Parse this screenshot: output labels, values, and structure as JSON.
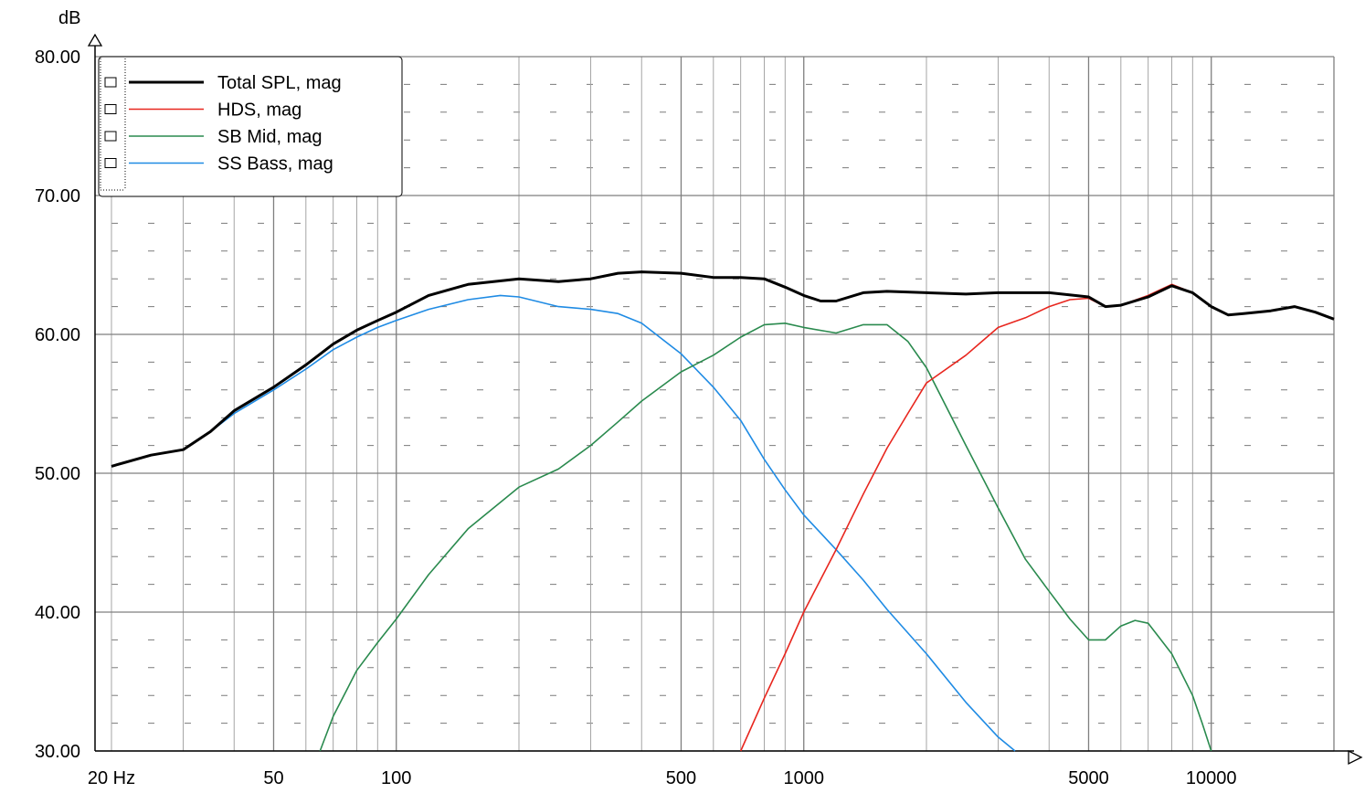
{
  "chart_data": {
    "type": "line",
    "ylabel": "dB",
    "xscale": "log",
    "xlim": [
      20,
      20000
    ],
    "ylim": [
      30,
      80
    ],
    "grid": true,
    "legend_position": "top-left",
    "y_ticks": [
      {
        "value": 80,
        "label": "80.00"
      },
      {
        "value": 70,
        "label": "70.00"
      },
      {
        "value": 60,
        "label": "60.00"
      },
      {
        "value": 50,
        "label": "50.00"
      },
      {
        "value": 40,
        "label": "40.00"
      },
      {
        "value": 30,
        "label": "30.00"
      }
    ],
    "x_ticks": [
      {
        "value": 20,
        "label": "20 Hz"
      },
      {
        "value": 50,
        "label": "50"
      },
      {
        "value": 100,
        "label": "100"
      },
      {
        "value": 500,
        "label": "500"
      },
      {
        "value": 1000,
        "label": "1000"
      },
      {
        "value": 5000,
        "label": "5000"
      },
      {
        "value": 10000,
        "label": "10000"
      }
    ],
    "series": [
      {
        "name": "Total SPL, mag",
        "color": "#000000",
        "x": [
          20,
          25,
          30,
          35,
          40,
          50,
          60,
          70,
          80,
          90,
          100,
          120,
          150,
          200,
          250,
          300,
          350,
          400,
          500,
          600,
          700,
          800,
          900,
          1000,
          1100,
          1200,
          1400,
          1600,
          2000,
          2500,
          3000,
          4000,
          5000,
          5500,
          6000,
          7000,
          8000,
          9000,
          10000,
          11000,
          12000,
          14000,
          16000,
          18000,
          20000
        ],
        "y": [
          50.5,
          51.3,
          51.7,
          53.0,
          54.5,
          56.2,
          57.8,
          59.3,
          60.3,
          61.0,
          61.6,
          62.8,
          63.6,
          64.0,
          63.8,
          64.0,
          64.4,
          64.5,
          64.4,
          64.1,
          64.1,
          64.0,
          63.4,
          62.8,
          62.4,
          62.4,
          63.0,
          63.1,
          63.0,
          62.9,
          63.0,
          63.0,
          62.7,
          62.0,
          62.1,
          62.7,
          63.5,
          63.0,
          62.0,
          61.4,
          61.5,
          61.7,
          62.0,
          61.6,
          61.1
        ]
      },
      {
        "name": "HDS, mag",
        "color": "#e8261e",
        "x": [
          700,
          800,
          900,
          1000,
          1200,
          1400,
          1600,
          1800,
          2000,
          2500,
          3000,
          3500,
          4000,
          4500,
          5000,
          5500,
          6000,
          7000,
          8000,
          9000,
          10000,
          11000,
          12000,
          14000,
          16000,
          18000,
          20000
        ],
        "y": [
          30.0,
          33.8,
          37.0,
          40.0,
          44.5,
          48.5,
          51.8,
          54.3,
          56.5,
          58.5,
          60.5,
          61.2,
          62.0,
          62.5,
          62.6,
          62.0,
          62.1,
          62.8,
          63.6,
          63.0,
          62.0,
          61.4,
          61.5,
          61.7,
          62.0,
          61.6,
          61.1
        ]
      },
      {
        "name": "SB Mid, mag",
        "color": "#2a8a4e",
        "x": [
          65,
          70,
          80,
          90,
          100,
          120,
          150,
          200,
          250,
          300,
          350,
          400,
          500,
          600,
          700,
          800,
          900,
          1000,
          1200,
          1400,
          1600,
          1800,
          2000,
          2500,
          3000,
          3500,
          4000,
          4500,
          5000,
          5500,
          6000,
          6500,
          7000,
          8000,
          9000,
          9500,
          10000
        ],
        "y": [
          30.0,
          32.5,
          35.8,
          37.8,
          39.5,
          42.7,
          46.0,
          49.0,
          50.3,
          52.0,
          53.7,
          55.2,
          57.3,
          58.5,
          59.8,
          60.7,
          60.8,
          60.5,
          60.1,
          60.7,
          60.7,
          59.5,
          57.6,
          52.0,
          47.5,
          43.8,
          41.5,
          39.5,
          38.0,
          38.0,
          39.0,
          39.4,
          39.2,
          37.0,
          34.0,
          32.0,
          30.0
        ]
      },
      {
        "name": "SS Bass, mag",
        "color": "#1f8be4",
        "x": [
          20,
          25,
          30,
          35,
          40,
          50,
          60,
          70,
          80,
          90,
          100,
          120,
          150,
          180,
          200,
          250,
          300,
          350,
          400,
          500,
          600,
          700,
          800,
          900,
          1000,
          1200,
          1400,
          1600,
          2000,
          2500,
          3000,
          3300
        ],
        "y": [
          50.5,
          51.3,
          51.7,
          53.0,
          54.3,
          56.0,
          57.5,
          58.9,
          59.8,
          60.5,
          61.0,
          61.8,
          62.5,
          62.8,
          62.7,
          62.0,
          61.8,
          61.5,
          60.8,
          58.6,
          56.2,
          53.8,
          51.0,
          48.8,
          47.0,
          44.5,
          42.3,
          40.2,
          37.0,
          33.5,
          31.0,
          30.0
        ]
      }
    ]
  }
}
